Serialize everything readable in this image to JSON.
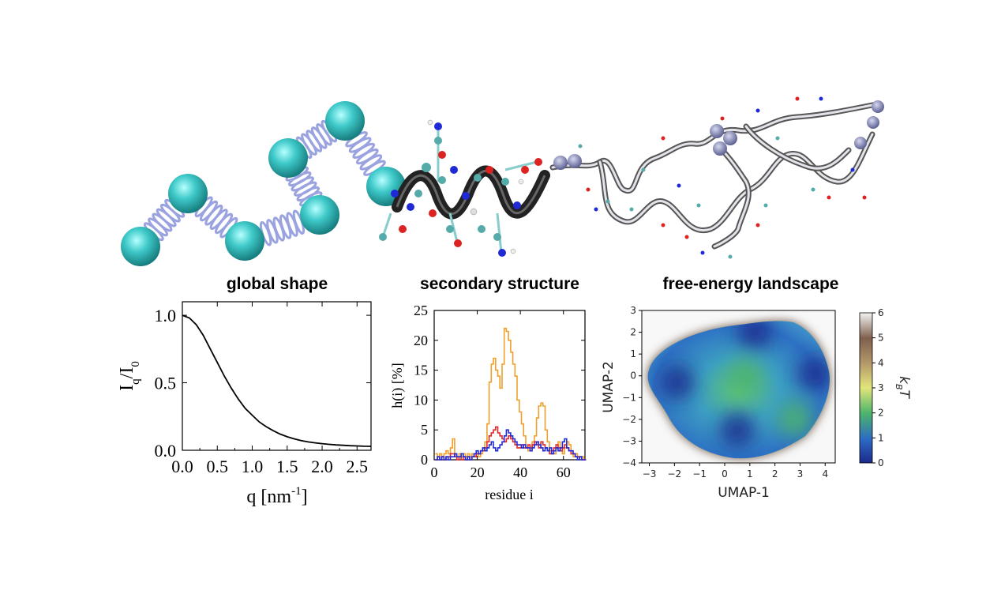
{
  "headings": {
    "global": "global shape",
    "secondary": "secondary structure",
    "landscape": "free-energy landscape"
  },
  "colors": {
    "bead": "#3fc9c9",
    "spring": "#9aa3e0",
    "helix": "#222222",
    "chain": "#c8ccd2",
    "sphere": "#7b7fb0",
    "series_blue": "#1f2ad6",
    "series_red": "#e32626",
    "series_orange": "#f0a02a"
  },
  "illustration": {
    "beads_count": 7,
    "helix_turns": 3
  },
  "chart_data": [
    {
      "type": "line",
      "xlabel_main": "q [nm",
      "xlabel_sup": "-1",
      "xlabel_end": "]",
      "ylabel_main": "I",
      "ylabel_sub1": "q",
      "ylabel_mid": "/I",
      "ylabel_sub2": "0",
      "xlim": [
        0,
        2.7
      ],
      "ylim": [
        0,
        1.1
      ],
      "xticks": [
        "0.0",
        "0.5",
        "1.0",
        "1.5",
        "2.0",
        "2.5"
      ],
      "xtick_values": [
        0,
        0.5,
        1.0,
        1.5,
        2.0,
        2.5
      ],
      "yticks": [
        "0.0",
        "0.5",
        "1.0"
      ],
      "ytick_values": [
        0,
        0.5,
        1.0
      ],
      "series": [
        {
          "x": [
            0,
            0.1,
            0.2,
            0.3,
            0.4,
            0.5,
            0.6,
            0.7,
            0.8,
            0.9,
            1.0,
            1.1,
            1.2,
            1.3,
            1.4,
            1.5,
            1.6,
            1.7,
            1.8,
            1.9,
            2.0,
            2.1,
            2.2,
            2.3,
            2.4,
            2.5,
            2.6,
            2.7
          ],
          "values": [
            1.0,
            0.98,
            0.93,
            0.85,
            0.75,
            0.65,
            0.55,
            0.46,
            0.38,
            0.31,
            0.26,
            0.21,
            0.175,
            0.145,
            0.12,
            0.1,
            0.085,
            0.072,
            0.062,
            0.055,
            0.049,
            0.044,
            0.04,
            0.037,
            0.034,
            0.032,
            0.03,
            0.029
          ]
        }
      ]
    },
    {
      "type": "line",
      "xlabel": "residue i",
      "ylabel": "h(i) [%]",
      "xlim": [
        0,
        70
      ],
      "ylim": [
        0,
        25
      ],
      "xticks": [
        "0",
        "20",
        "40",
        "60"
      ],
      "xtick_values": [
        0,
        20,
        40,
        60
      ],
      "yticks": [
        "0",
        "5",
        "10",
        "15",
        "20",
        "25"
      ],
      "ytick_values": [
        0,
        5,
        10,
        15,
        20,
        25
      ],
      "x": [
        1,
        2,
        3,
        4,
        5,
        6,
        7,
        8,
        9,
        10,
        11,
        12,
        13,
        14,
        15,
        16,
        17,
        18,
        19,
        20,
        21,
        22,
        23,
        24,
        25,
        26,
        27,
        28,
        29,
        30,
        31,
        32,
        33,
        34,
        35,
        36,
        37,
        38,
        39,
        40,
        41,
        42,
        43,
        44,
        45,
        46,
        47,
        48,
        49,
        50,
        51,
        52,
        53,
        54,
        55,
        56,
        57,
        58,
        59,
        60,
        61,
        62,
        63,
        64,
        65,
        66,
        67,
        68,
        69,
        70
      ],
      "series": [
        {
          "name": "",
          "color": "#f0a02a",
          "values": [
            1,
            0.5,
            1,
            0.5,
            1,
            1.5,
            1,
            2,
            3.5,
            1,
            0.5,
            1,
            0.5,
            1,
            0.5,
            1,
            0.5,
            1,
            0.5,
            1,
            0.5,
            1,
            2,
            3,
            6,
            13,
            16,
            17,
            15,
            14,
            12,
            16,
            22,
            21.5,
            20,
            18,
            16,
            14,
            10,
            8,
            6,
            4,
            2,
            1.5,
            2,
            3,
            4,
            7,
            9,
            9.5,
            9,
            5,
            3,
            1.5,
            1,
            1,
            2,
            3,
            1.5,
            1,
            2,
            3,
            2.5,
            1,
            0.5,
            1,
            0.5,
            0.5,
            0.5,
            0
          ]
        },
        {
          "name": "",
          "color": "#e32626",
          "values": [
            0,
            0.5,
            0,
            0.5,
            0,
            0.5,
            0.5,
            1,
            1,
            0.5,
            0,
            0.5,
            0,
            0.5,
            0,
            0.5,
            0,
            0.5,
            0.5,
            1,
            1,
            1.5,
            1.5,
            2,
            3,
            4,
            4.5,
            5,
            5.5,
            4.5,
            4,
            3.5,
            3,
            3.5,
            4,
            3.5,
            3,
            2.5,
            2,
            2,
            2.5,
            2,
            2,
            2.5,
            2,
            2.5,
            3,
            2.5,
            2,
            3,
            2.5,
            2,
            1.5,
            1,
            1.5,
            2,
            2.5,
            2,
            1.5,
            2,
            2.5,
            2,
            1.5,
            1,
            1,
            0.5,
            0.5,
            0.5,
            0,
            0
          ]
        },
        {
          "name": "",
          "color": "#1f2ad6",
          "values": [
            0,
            0.5,
            0,
            0.5,
            0,
            0.5,
            0,
            0.5,
            0.5,
            1,
            0.5,
            0.5,
            1,
            0.5,
            0,
            0.5,
            0,
            0.5,
            1,
            1.5,
            1,
            1.5,
            2,
            1.5,
            2,
            2.5,
            3,
            2,
            1.5,
            2,
            2.5,
            3,
            4,
            5,
            4.5,
            4,
            3.5,
            3,
            2.5,
            2.5,
            2,
            2.5,
            2,
            2,
            1.5,
            2,
            2.5,
            3,
            2.5,
            2,
            1.5,
            2,
            1.5,
            2,
            1,
            1.5,
            2,
            1.5,
            2,
            3,
            3.5,
            2,
            1.5,
            1.5,
            1,
            0.5,
            0,
            0.5,
            0,
            0
          ]
        }
      ]
    },
    {
      "type": "heatmap",
      "xlabel": "UMAP-1",
      "ylabel": "UMAP-2",
      "xlim": [
        -3.3,
        4.4
      ],
      "ylim": [
        -4,
        3
      ],
      "xticks": [
        "−3",
        "−2",
        "−1",
        "0",
        "1",
        "2",
        "3",
        "4"
      ],
      "xtick_values": [
        -3,
        -2,
        -1,
        0,
        1,
        2,
        3,
        4
      ],
      "yticks": [
        "−4",
        "−3",
        "−2",
        "−1",
        "0",
        "1",
        "2",
        "3"
      ],
      "ytick_values": [
        -4,
        -3,
        -2,
        -1,
        0,
        1,
        2,
        3
      ],
      "colorbar": {
        "label_main": "k",
        "label_sub": "B",
        "label_end": "T",
        "ticks": [
          "0",
          "1",
          "2",
          "3",
          "4",
          "5",
          "6"
        ],
        "tick_values": [
          0,
          1,
          2,
          3,
          4,
          5,
          6
        ],
        "range": [
          0,
          6
        ]
      },
      "blobs": [
        {
          "x": 0.5,
          "y": -2.5,
          "value": 0.2
        },
        {
          "x": 1.2,
          "y": 2.0,
          "value": 0.3
        },
        {
          "x": -1.9,
          "y": -0.3,
          "value": 0.4
        },
        {
          "x": 3.6,
          "y": 0.1,
          "value": 0.4
        },
        {
          "x": 0.8,
          "y": 0.0,
          "value": 2.0
        },
        {
          "x": 2.8,
          "y": -2.0,
          "value": 1.8
        }
      ]
    }
  ]
}
